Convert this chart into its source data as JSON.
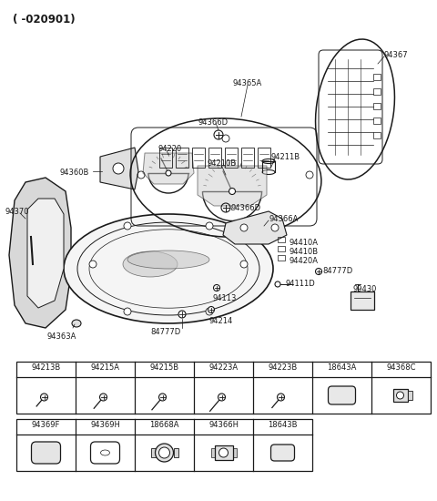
{
  "title": "( -020901)",
  "bg_color": "#ffffff",
  "line_color": "#1a1a1a",
  "text_color": "#1a1a1a",
  "font_size_label": 6.0,
  "font_size_title": 8.5,
  "table1_headers": [
    "94213B",
    "94215A",
    "94215B",
    "94223A",
    "94223B",
    "18643A",
    "94368C"
  ],
  "table2_headers": [
    "94369F",
    "94369H",
    "18668A",
    "94366H",
    "18643B"
  ],
  "fig_width": 4.8,
  "fig_height": 5.5,
  "dpi": 100
}
